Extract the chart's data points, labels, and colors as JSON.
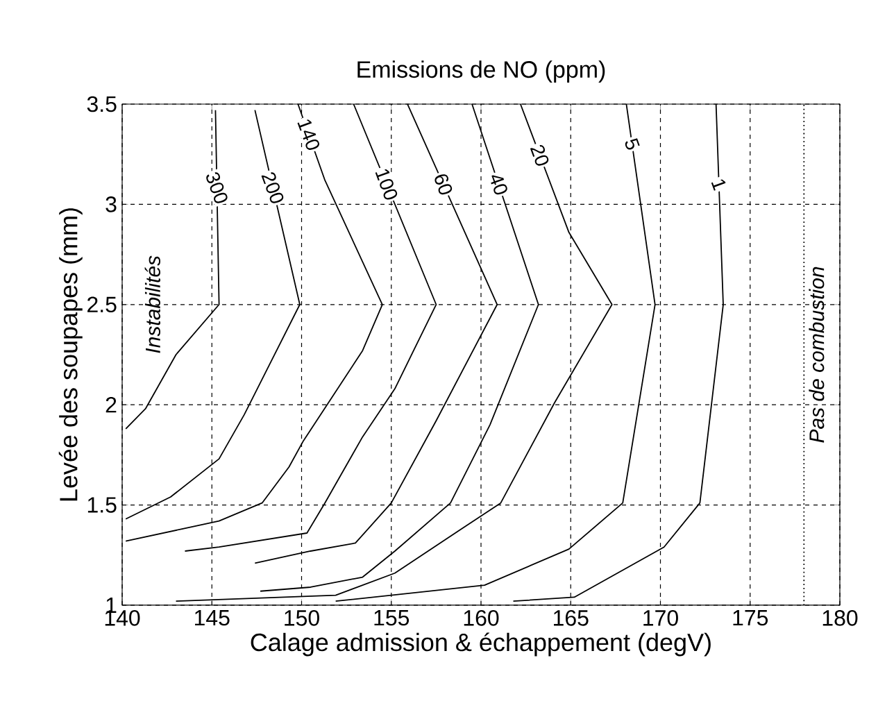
{
  "chart_data": {
    "type": "line",
    "title": "Emissions de NO (ppm)",
    "xlabel": "Calage admission & échappement (degV)",
    "ylabel": "Levée des soupapes (mm)",
    "xlim": [
      140,
      180
    ],
    "ylim": [
      1,
      3.5
    ],
    "xticks": [
      140,
      145,
      150,
      155,
      160,
      165,
      170,
      175,
      180
    ],
    "yticks": [
      1,
      1.5,
      2,
      2.5,
      3,
      3.5
    ],
    "grid": true,
    "line_style": "solid",
    "marker": "none",
    "series": [
      {
        "name": "300",
        "color": "#000000",
        "x": [
          145.2,
          145.4,
          143.0,
          141.3,
          140.2
        ],
        "values": [
          3.47,
          2.5,
          2.25,
          1.98,
          1.88
        ]
      },
      {
        "name": "200",
        "color": "#000000",
        "x": [
          147.4,
          149.9,
          146.8,
          145.4,
          142.7,
          140.2
        ],
        "values": [
          3.47,
          2.5,
          1.95,
          1.73,
          1.54,
          1.43
        ]
      },
      {
        "name": "140",
        "color": "#000000",
        "x": [
          149.8,
          151.3,
          154.5,
          153.4,
          150.1,
          149.3,
          147.8,
          145.4,
          140.2
        ],
        "values": [
          3.5,
          3.12,
          2.5,
          2.27,
          1.82,
          1.69,
          1.51,
          1.42,
          1.32
        ]
      },
      {
        "name": "100",
        "color": "#000000",
        "x": [
          152.9,
          157.5,
          155.2,
          153.4,
          151.3,
          150.3,
          145.4,
          143.5
        ],
        "values": [
          3.5,
          2.5,
          2.08,
          1.84,
          1.51,
          1.36,
          1.29,
          1.27
        ]
      },
      {
        "name": "60",
        "color": "#000000",
        "x": [
          155.9,
          160.9,
          157.5,
          155.0,
          153.0,
          150.5,
          147.4
        ],
        "values": [
          3.5,
          2.5,
          1.92,
          1.51,
          1.31,
          1.27,
          1.21
        ]
      },
      {
        "name": "40",
        "color": "#000000",
        "x": [
          159.5,
          163.2,
          160.5,
          158.3,
          155.2,
          153.4,
          150.5,
          147.7
        ],
        "values": [
          3.5,
          2.5,
          1.9,
          1.51,
          1.27,
          1.14,
          1.09,
          1.07
        ]
      },
      {
        "name": "20",
        "color": "#000000",
        "x": [
          162.2,
          164.9,
          167.3,
          164.1,
          161.1,
          158.9,
          155.2,
          151.9,
          143.0
        ],
        "values": [
          3.5,
          2.86,
          2.5,
          2.01,
          1.51,
          1.38,
          1.16,
          1.05,
          1.02
        ]
      },
      {
        "name": "5",
        "color": "#000000",
        "x": [
          168.1,
          168.9,
          169.7,
          167.9,
          164.9,
          160.2,
          151.9
        ],
        "values": [
          3.5,
          3.0,
          2.5,
          1.51,
          1.28,
          1.1,
          1.02
        ]
      },
      {
        "name": "1",
        "color": "#000000",
        "x": [
          173.1,
          173.5,
          172.2,
          170.2,
          165.2,
          161.8
        ],
        "values": [
          3.5,
          2.5,
          1.51,
          1.29,
          1.04,
          1.02
        ]
      }
    ],
    "ref_lines": [
      {
        "axis": "x",
        "value": 178,
        "label": "Pas de combustion",
        "line_style": "dotted",
        "color": "#000000"
      }
    ],
    "annotations": [
      "Instabilités"
    ]
  }
}
